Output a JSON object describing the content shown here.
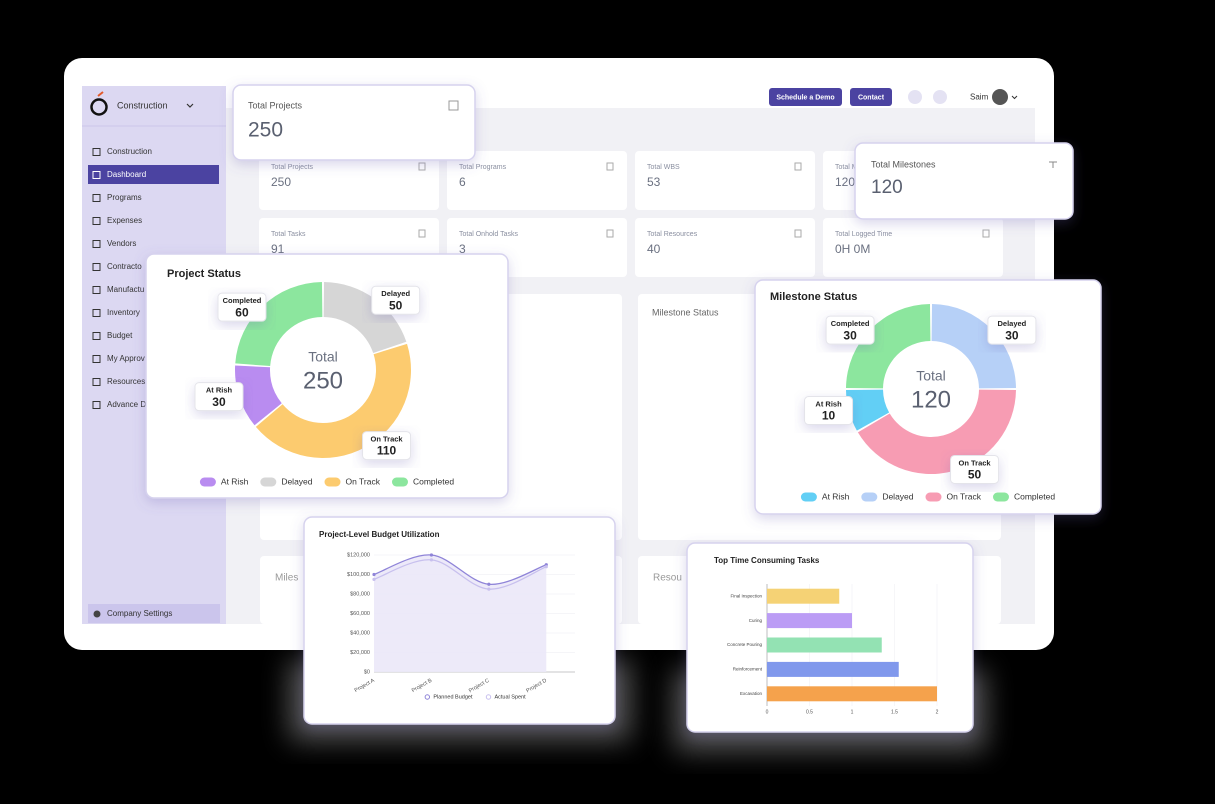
{
  "sidebar": {
    "brand": "Construction",
    "menu": [
      "Construction",
      "Dashboard",
      "Programs",
      "Expenses",
      "Vendors",
      "Contracto",
      "Manufactu",
      "Inventory",
      "Budget",
      "My Approv",
      "Resources",
      "Advance D"
    ],
    "footer": "Company Settings"
  },
  "header": {
    "buttons": [
      "Schedule a Demo",
      "Contact"
    ],
    "user": "Saim"
  },
  "stats": [
    {
      "label": "Total Projects",
      "value": 250
    },
    {
      "label": "Total Programs",
      "value": 6
    },
    {
      "label": "Total WBS",
      "value": 53
    },
    {
      "label": "Total Milestones",
      "value": 120
    },
    {
      "label": "Total Tasks",
      "value": 91
    },
    {
      "label": "Total Onhold Tasks",
      "value": 3
    },
    {
      "label": "Total Resources",
      "value": 40
    },
    {
      "label": "Total Logged Time",
      "value": "0H 0M"
    }
  ],
  "panels": [
    "Milestone Status",
    "Miles",
    "Resou"
  ],
  "popups": [
    {
      "label": "Total Projects",
      "value": 250
    },
    {
      "label": "Total Milestones",
      "value": 120
    }
  ],
  "chart_data": [
    {
      "type": "donut",
      "title": "Project Status",
      "center_label": "Total",
      "total": 250,
      "categories": [
        "At Rish",
        "Delayed",
        "On Track",
        "Completed"
      ],
      "values": [
        30,
        50,
        110,
        60
      ],
      "colors": [
        "#b98cf0",
        "#d6d6d6",
        "#fccb6f",
        "#8ce69e"
      ]
    },
    {
      "type": "donut",
      "title": "Milestone Status",
      "center_label": "Total",
      "total": 120,
      "categories": [
        "At Rish",
        "Delayed",
        "On Track",
        "Completed"
      ],
      "values": [
        10,
        30,
        50,
        30
      ],
      "colors": [
        "#62cff5",
        "#b6d0f7",
        "#f79cb3",
        "#8ce69e"
      ]
    },
    {
      "type": "line",
      "title": "Project-Level Budget Utilization",
      "categories": [
        "Project A",
        "Project B",
        "Project C",
        "Project D"
      ],
      "series": [
        {
          "name": "Planned Budget",
          "color": "#8f84d8",
          "values": [
            100000,
            120000,
            90000,
            110000
          ]
        },
        {
          "name": "Actual Spent",
          "color": "#c8c0ee",
          "values": [
            95000,
            115000,
            85000,
            108000
          ]
        }
      ],
      "ylim": [
        0,
        120000
      ],
      "yticks": [
        {
          "value": 0,
          "label": "$0"
        },
        {
          "value": 20000,
          "label": "$20,000"
        },
        {
          "value": 40000,
          "label": "$40,000"
        },
        {
          "value": 60000,
          "label": "$60,000"
        },
        {
          "value": 80000,
          "label": "$80,000"
        },
        {
          "value": 100000,
          "label": "$100,000"
        },
        {
          "value": 120000,
          "label": "$120,000"
        }
      ],
      "grid": true
    },
    {
      "type": "hbar",
      "title": "Top Time Consuming Tasks",
      "categories": [
        "Final Inspection",
        "Curing",
        "Concrete Pouring",
        "Reinforcement",
        "Excavation"
      ],
      "values": [
        0.85,
        1,
        1.35,
        1.55,
        2
      ],
      "colors": [
        "#f5d275",
        "#bb9cf5",
        "#93e2b3",
        "#8098ec",
        "#f5a24c"
      ],
      "xlim": [
        0,
        2
      ],
      "xticks": [
        0,
        0.5,
        1,
        1.5,
        2
      ],
      "grid": true
    }
  ]
}
